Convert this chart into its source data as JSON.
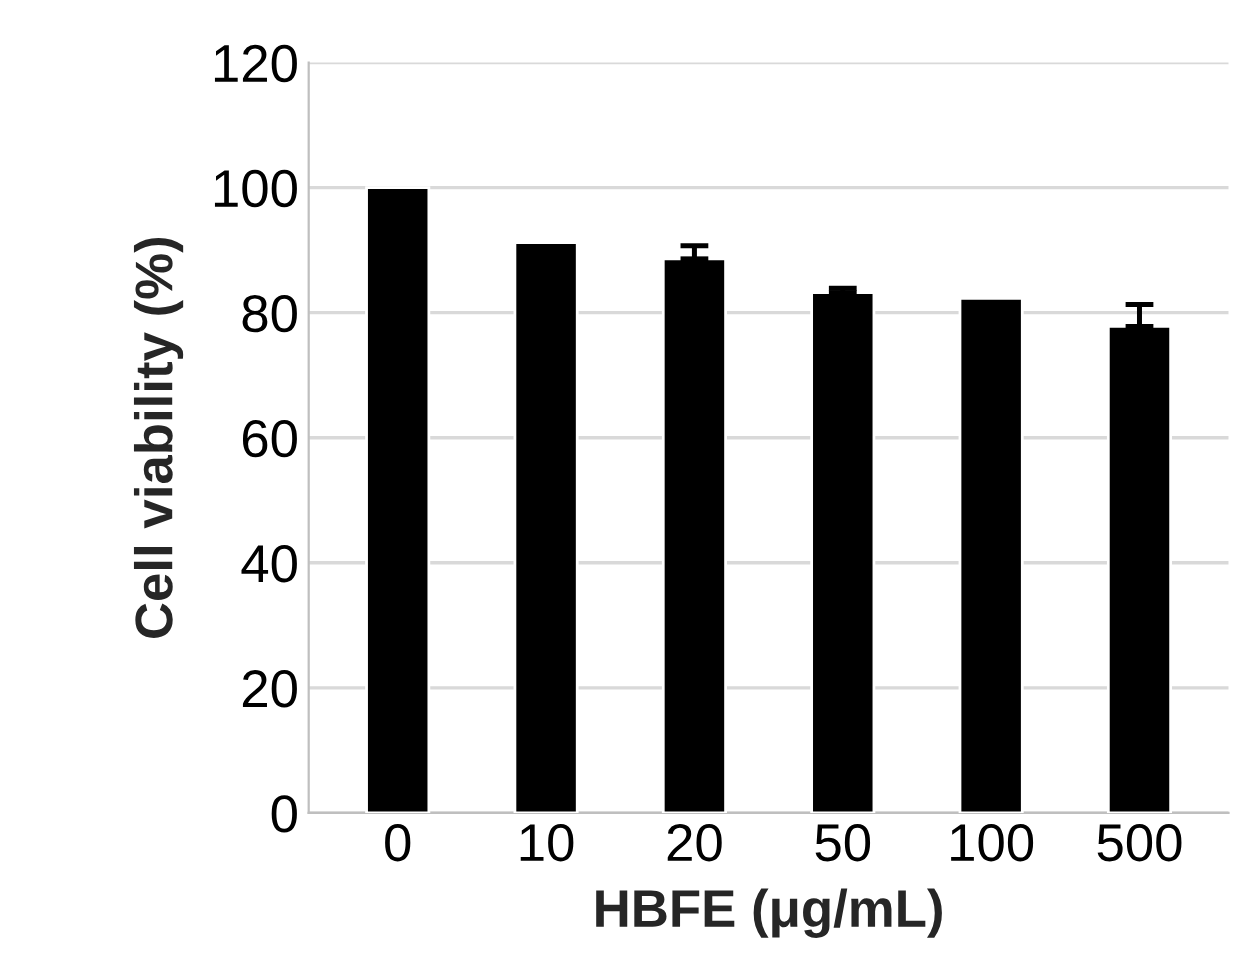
{
  "chart_data": {
    "type": "bar",
    "xlabel": "HBFE (μg/mL)",
    "ylabel": "Cell viability (%)",
    "categories": [
      "0",
      "10",
      "20",
      "50",
      "100",
      "500"
    ],
    "values": [
      100,
      91.2,
      88.6,
      83.2,
      82.3,
      77.8
    ],
    "errors": [
      null,
      null,
      2.1,
      0.7,
      null,
      3.5
    ],
    "color": "#000000",
    "ylim": [
      0,
      120
    ],
    "yticks": [
      0,
      20,
      40,
      60,
      80,
      100,
      120
    ],
    "grid": "y"
  }
}
